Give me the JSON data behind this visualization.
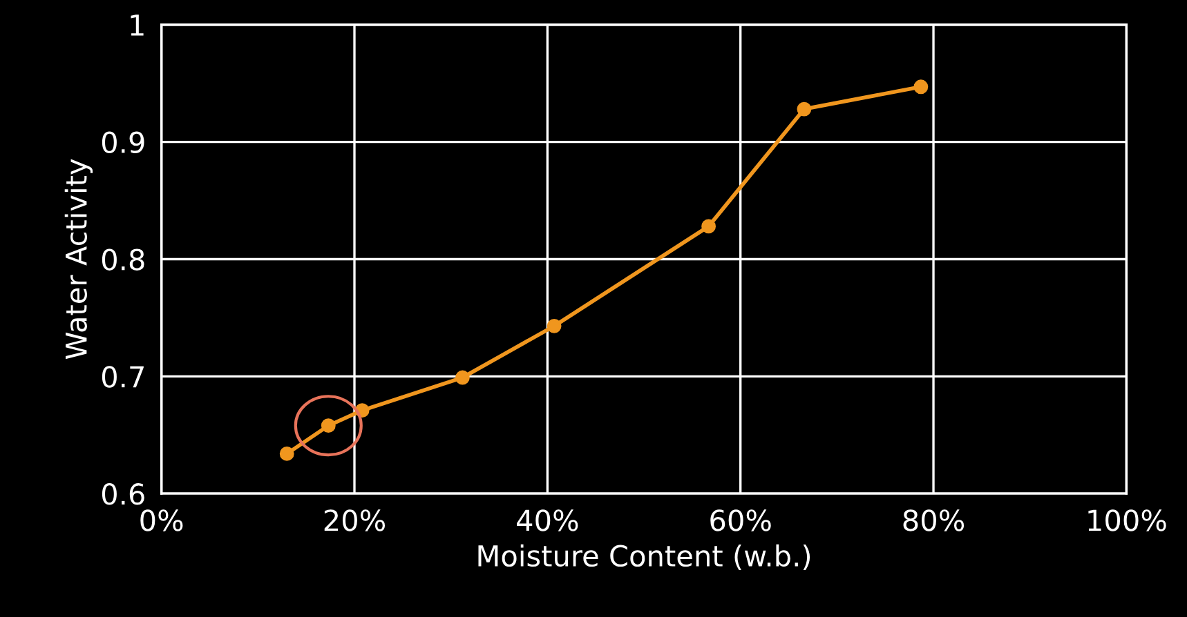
{
  "chart_data": {
    "type": "line",
    "xlabel": "Moisture Content (w.b.)",
    "ylabel": "Water Activity",
    "x": [
      13.0,
      17.3,
      20.8,
      31.2,
      40.7,
      56.7,
      66.6,
      78.7
    ],
    "series": [
      {
        "color": "#f0961e",
        "values": [
          0.634,
          0.658,
          0.671,
          0.699,
          0.743,
          0.828,
          0.928,
          0.947
        ]
      }
    ],
    "xlim": [
      0,
      100
    ],
    "xticks": [
      {
        "value": 0,
        "label": "0%"
      },
      {
        "value": 20,
        "label": "20%"
      },
      {
        "value": 40,
        "label": "40%"
      },
      {
        "value": 60,
        "label": "60%"
      },
      {
        "value": 80,
        "label": "80%"
      },
      {
        "value": 100,
        "label": "100%"
      }
    ],
    "ylim": [
      0.6,
      1
    ],
    "yticks": [
      0.6,
      0.7,
      0.8,
      0.9,
      1
    ],
    "grid": true,
    "marker": "circle",
    "line_style": "solid"
  }
}
